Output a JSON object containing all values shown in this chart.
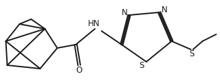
{
  "bg_color": "#ffffff",
  "line_color": "#1a1a1a",
  "line_width": 1.4,
  "fig_width": 3.2,
  "fig_height": 1.18,
  "dpi": 100,
  "xlim": [
    0,
    10
  ],
  "ylim": [
    0,
    3.7
  ]
}
